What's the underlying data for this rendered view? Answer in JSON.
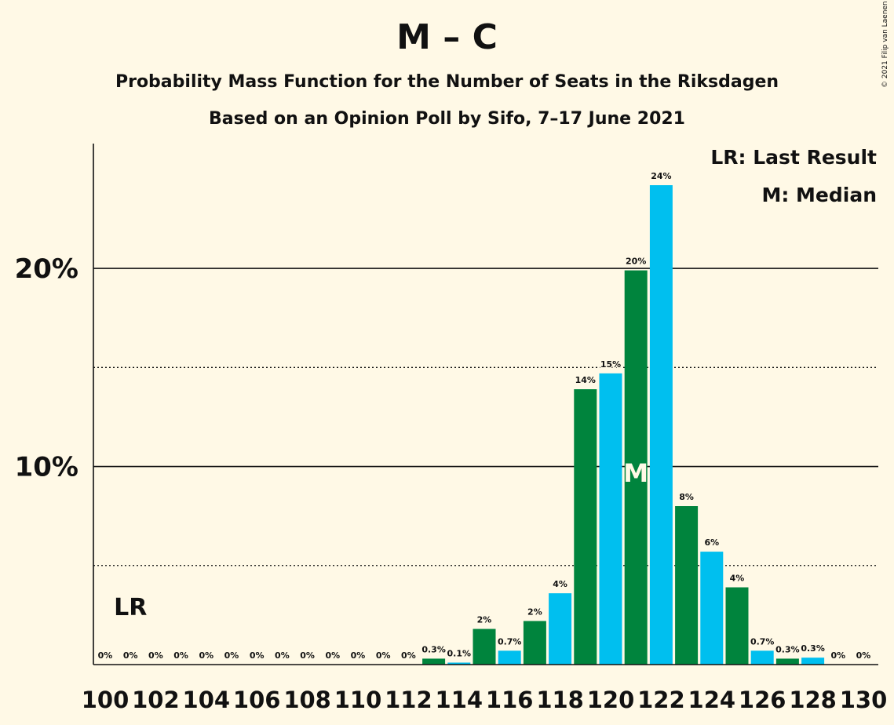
{
  "header": {
    "title": "M – C",
    "subtitle": "Probability Mass Function for the Number of Seats in the Riksdagen",
    "subtitle2": "Based on an Opinion Poll by Sifo, 7–17 June 2021",
    "copyright": "© 2021 Filip van Laenen"
  },
  "legend": {
    "last_result": "LR: Last Result",
    "median": "M: Median"
  },
  "colors": {
    "background": "#FFF9E6",
    "green": "#00843D",
    "blue": "#00BFEF",
    "text": "#111111"
  },
  "chart_data": {
    "type": "bar",
    "x": [
      100,
      101,
      102,
      103,
      104,
      105,
      106,
      107,
      108,
      109,
      110,
      111,
      112,
      113,
      114,
      115,
      116,
      117,
      118,
      119,
      120,
      121,
      122,
      123,
      124,
      125,
      126,
      127,
      128,
      129,
      130
    ],
    "values": [
      0,
      0,
      0,
      0,
      0,
      0,
      0,
      0,
      0,
      0,
      0,
      0,
      0,
      0.3,
      0.1,
      1.8,
      0.7,
      2.2,
      3.6,
      13.9,
      14.7,
      19.9,
      24.2,
      8.0,
      5.7,
      3.9,
      0.7,
      0.3,
      0.35,
      0,
      0
    ],
    "data_labels": [
      "0%",
      "0%",
      "0%",
      "0%",
      "0%",
      "0%",
      "0%",
      "0%",
      "0%",
      "0%",
      "0%",
      "0%",
      "0%",
      "0.3%",
      "0.1%",
      "2%",
      "0.7%",
      "2%",
      "4%",
      "14%",
      "15%",
      "20%",
      "24%",
      "8%",
      "6%",
      "4%",
      "0.7%",
      "0.3%",
      "0.3%",
      "0%",
      "0%"
    ],
    "x_tick_labels": [
      "100",
      "102",
      "104",
      "106",
      "108",
      "110",
      "112",
      "114",
      "116",
      "118",
      "120",
      "122",
      "124",
      "126",
      "128",
      "130"
    ],
    "y_ticks": [
      10,
      20
    ],
    "y_tick_labels": [
      "10%",
      "20%"
    ],
    "y_minor_ticks": [
      5,
      15
    ],
    "ylim": [
      0,
      26.3
    ],
    "last_result_x": 101,
    "last_result_label": "LR",
    "median_x": 121,
    "median_label": "M",
    "legend_position": "top-right"
  }
}
